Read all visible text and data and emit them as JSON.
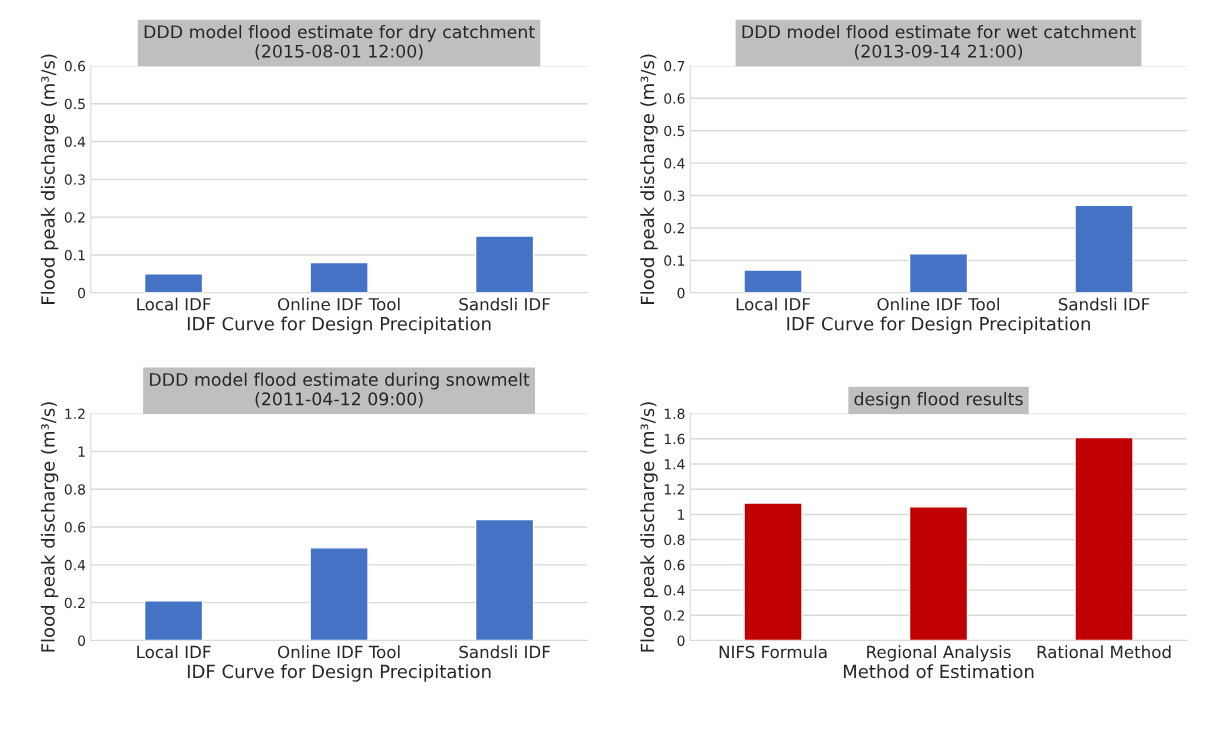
{
  "chart_data": [
    {
      "type": "bar",
      "title": "DDD model flood estimate for dry catchment\n(2015-08-01 12:00)",
      "xlabel": "IDF Curve for Design Precipitation",
      "ylabel": "Flood peak discharge (m³/s)",
      "categories": [
        "Local IDF",
        "Online IDF Tool",
        "Sandsli IDF"
      ],
      "values": [
        0.05,
        0.08,
        0.15
      ],
      "color": "#4472c4",
      "ylim": [
        0,
        0.6
      ],
      "yticks": [
        0,
        0.1,
        0.2,
        0.3,
        0.4,
        0.5,
        0.6
      ],
      "grid": "y"
    },
    {
      "type": "bar",
      "title": "DDD model flood estimate for wet catchment\n(2013-09-14 21:00)",
      "xlabel": "IDF Curve for Design Precipitation",
      "ylabel": "Flood peak discharge (m³/s)",
      "categories": [
        "Local IDF",
        "Online IDF Tool",
        "Sandsli IDF"
      ],
      "values": [
        0.07,
        0.12,
        0.27
      ],
      "color": "#4472c4",
      "ylim": [
        0,
        0.7
      ],
      "yticks": [
        0,
        0.1,
        0.2,
        0.3,
        0.4,
        0.5,
        0.6,
        0.7
      ],
      "grid": "y"
    },
    {
      "type": "bar",
      "title": "DDD model flood estimate during snowmelt\n(2011-04-12 09:00)",
      "xlabel": "IDF Curve for Design Precipitation",
      "ylabel": "Flood peak discharge (m³/s)",
      "categories": [
        "Local IDF",
        "Online IDF Tool",
        "Sandsli IDF"
      ],
      "values": [
        0.21,
        0.49,
        0.64
      ],
      "color": "#4472c4",
      "ylim": [
        0,
        1.2
      ],
      "yticks": [
        0,
        0.2,
        0.4,
        0.6,
        0.8,
        1,
        1.2
      ],
      "grid": "y"
    },
    {
      "type": "bar",
      "title": "design flood results",
      "xlabel": "Method of Estimation",
      "ylabel": "Flood peak discharge (m³/s)",
      "categories": [
        "NIFS Formula",
        "Regional Analysis",
        "Rational Method"
      ],
      "values": [
        1.09,
        1.06,
        1.61
      ],
      "color": "#c00000",
      "ylim": [
        0,
        1.8
      ],
      "yticks": [
        0,
        0.2,
        0.4,
        0.6,
        0.8,
        1,
        1.2,
        1.4,
        1.6,
        1.8
      ],
      "grid": "y"
    }
  ]
}
